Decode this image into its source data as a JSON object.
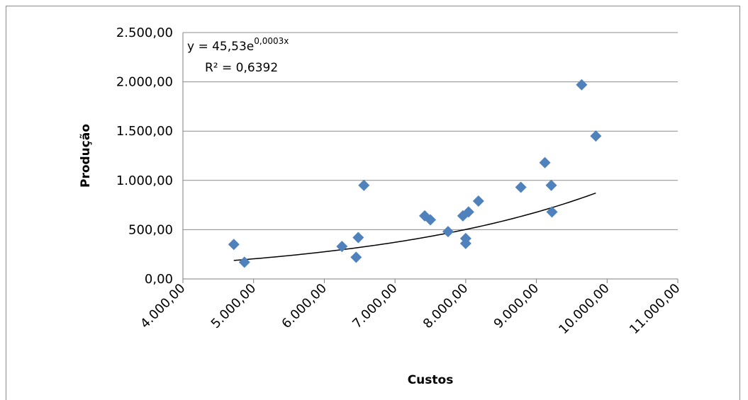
{
  "chart_data": {
    "type": "scatter",
    "xlabel": "Custos",
    "ylabel": "Produção",
    "xlim": [
      4000,
      11000
    ],
    "ylim": [
      0,
      2500
    ],
    "x_ticks": [
      4000,
      5000,
      6000,
      7000,
      8000,
      9000,
      10000,
      11000
    ],
    "x_tick_labels": [
      "4.000,00",
      "5.000,00",
      "6.000,00",
      "7.000,00",
      "8.000,00",
      "9.000,00",
      "10.000,00",
      "11.000,00"
    ],
    "y_ticks": [
      0,
      500,
      1000,
      1500,
      2000,
      2500
    ],
    "y_tick_labels": [
      "0,00",
      "500,00",
      "1.000,00",
      "1.500,00",
      "2.000,00",
      "2.500,00"
    ],
    "grid": "horizontal",
    "marker_color": "#4f81bd",
    "trendline_color": "#000000",
    "points": [
      {
        "x": 4720,
        "y": 350
      },
      {
        "x": 4870,
        "y": 170
      },
      {
        "x": 6250,
        "y": 330
      },
      {
        "x": 6450,
        "y": 220
      },
      {
        "x": 6480,
        "y": 420
      },
      {
        "x": 6560,
        "y": 950
      },
      {
        "x": 7420,
        "y": 640
      },
      {
        "x": 7500,
        "y": 600
      },
      {
        "x": 7750,
        "y": 480
      },
      {
        "x": 7960,
        "y": 640
      },
      {
        "x": 8000,
        "y": 410
      },
      {
        "x": 8000,
        "y": 360
      },
      {
        "x": 8040,
        "y": 680
      },
      {
        "x": 8180,
        "y": 790
      },
      {
        "x": 8780,
        "y": 930
      },
      {
        "x": 9120,
        "y": 1180
      },
      {
        "x": 9210,
        "y": 950
      },
      {
        "x": 9220,
        "y": 680
      },
      {
        "x": 9640,
        "y": 1970
      },
      {
        "x": 9840,
        "y": 1450
      }
    ],
    "trendline": {
      "type": "exponential",
      "a": 45.53,
      "b": 0.0003,
      "x_range": [
        4720,
        9840
      ],
      "equation_base": "y = 45,53e",
      "equation_exp": "0,0003x",
      "r2_label": "R² = 0,6392"
    }
  }
}
